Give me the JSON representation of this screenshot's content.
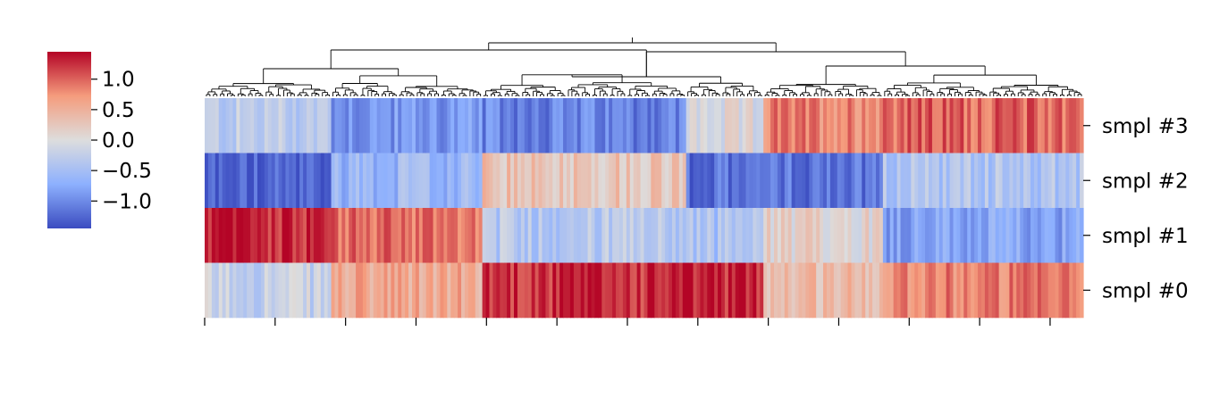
{
  "chart_data": {
    "type": "heatmap",
    "title": "",
    "xlabel": "",
    "ylabel": "",
    "rows": [
      "smpl #3",
      "smpl #2",
      "smpl #1",
      "smpl #0"
    ],
    "n_columns": 250,
    "colormap": "coolwarm",
    "vmin": -1.45,
    "vmax": 1.45,
    "colorbar_ticks": [
      "1.0",
      "0.5",
      "0.0",
      "−0.5",
      "−1.0"
    ],
    "colorbar_tick_values": [
      1.0,
      0.5,
      0.0,
      -0.5,
      -1.0
    ],
    "x_tick_labels": [],
    "column_dendrogram": true,
    "clusters": [
      {
        "columns": 36,
        "values": [
          -0.3,
          -1.3,
          1.3,
          -0.2
        ]
      },
      {
        "columns": 43,
        "values": [
          -0.9,
          -0.6,
          0.95,
          0.55
        ]
      },
      {
        "columns": 58,
        "values": [
          -1.05,
          0.3,
          -0.35,
          1.25
        ]
      },
      {
        "columns": 22,
        "values": [
          -0.05,
          -1.2,
          -0.45,
          1.3
        ]
      },
      {
        "columns": 34,
        "values": [
          0.85,
          -1.15,
          0.1,
          0.4
        ]
      },
      {
        "columns": 57,
        "values": [
          1.0,
          -0.4,
          -0.8,
          0.85
        ]
      }
    ]
  },
  "colors": {
    "dendrogram": "#000000",
    "background": "#ffffff"
  }
}
